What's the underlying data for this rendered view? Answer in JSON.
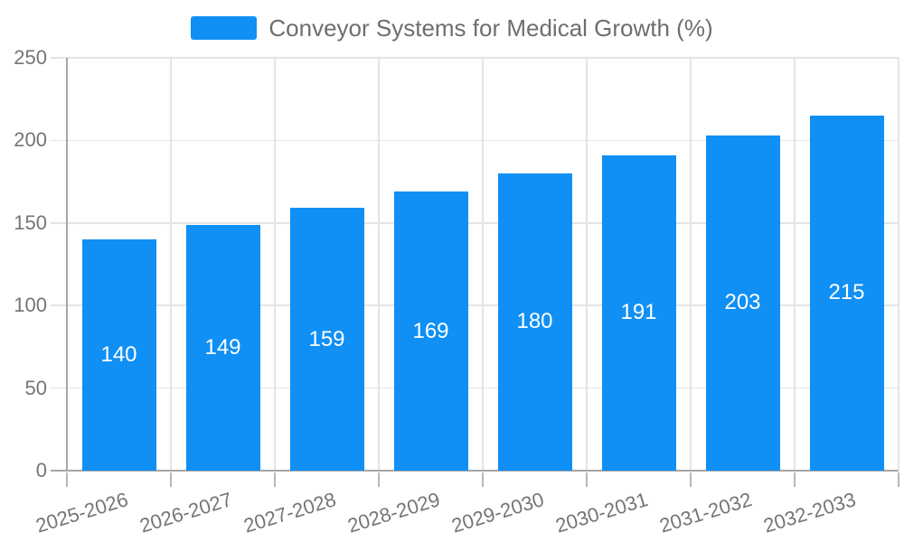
{
  "chart_data": {
    "type": "bar",
    "title": "",
    "xlabel": "",
    "ylabel": "",
    "legend": "Conveyor Systems for Medical Growth (%)",
    "legend_position": "top-center",
    "categories": [
      "2025-2026",
      "2026-2027",
      "2027-2028",
      "2028-2029",
      "2029-2030",
      "2030-2031",
      "2031-2032",
      "2032-2033"
    ],
    "series": [
      {
        "name": "Conveyor Systems for Medical Growth (%)",
        "values": [
          140,
          149,
          159,
          169,
          180,
          191,
          203,
          215
        ]
      }
    ],
    "value_labels": "inside-center",
    "ylim": [
      0,
      250
    ],
    "yticks": [
      0,
      50,
      100,
      150,
      200,
      250
    ],
    "grid": true,
    "colors": {
      "bar": "#1090F5",
      "grid": "#E4E4E4",
      "axis": "#A6A6A6",
      "tick": "#B8B8B8",
      "axis_text": "#757575",
      "legend_text": "#6E6E6E",
      "value_label": "#FFFFFF",
      "background": "#FFFFFF"
    }
  }
}
